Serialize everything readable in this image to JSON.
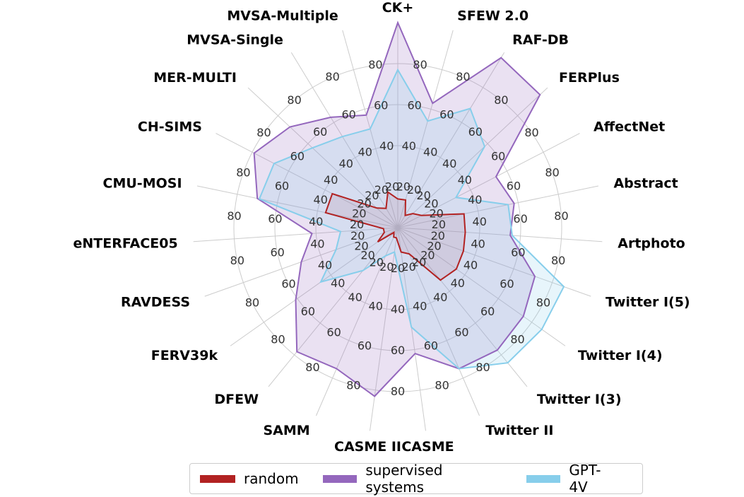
{
  "chart_data": {
    "type": "radar",
    "axes": [
      "CK+",
      "SFEW 2.0",
      "RAF-DB",
      "FERPlus",
      "AffectNet",
      "Abstract",
      "Artphoto",
      "Twitter I(5)",
      "Twitter I(4)",
      "Twitter I(3)",
      "Twitter II",
      "CASME",
      "CASME II",
      "SAMM",
      "DFEW",
      "FERV39k",
      "RAVDESS",
      "eNTERFACE05",
      "CMU-MOSI",
      "CH-SIMS",
      "MER-MULTI",
      "MVSA-Single",
      "MVSA-Multiple"
    ],
    "rlim": [
      0,
      100
    ],
    "rticks": [
      20,
      40,
      60,
      80
    ],
    "grid": true,
    "legend_position": "bottom-center",
    "series": [
      {
        "name": "random",
        "color": "#b22222",
        "fill_opacity": 0.12,
        "values": [
          14,
          14,
          7,
          10,
          13,
          33,
          33,
          34,
          35,
          33,
          14,
          12,
          5,
          5,
          3,
          12,
          7,
          7,
          36,
          36,
          14,
          11,
          18
        ]
      },
      {
        "name": "supervised systems",
        "color": "#9467bd",
        "fill_opacity": 0.2,
        "values": [
          100,
          63,
          97,
          95,
          54,
          58,
          55,
          71,
          75,
          77,
          75,
          62,
          83,
          75,
          78,
          61,
          50,
          42,
          70,
          79,
          72,
          63,
          57
        ]
      },
      {
        "name": "GPT-4V",
        "color": "#87ceeb",
        "fill_opacity": 0.2,
        "values": [
          77,
          54,
          68,
          58,
          32,
          55,
          56,
          86,
          86,
          85,
          75,
          49,
          12,
          15,
          27,
          46,
          32,
          28,
          69,
          68,
          57,
          52,
          50
        ]
      }
    ]
  }
}
